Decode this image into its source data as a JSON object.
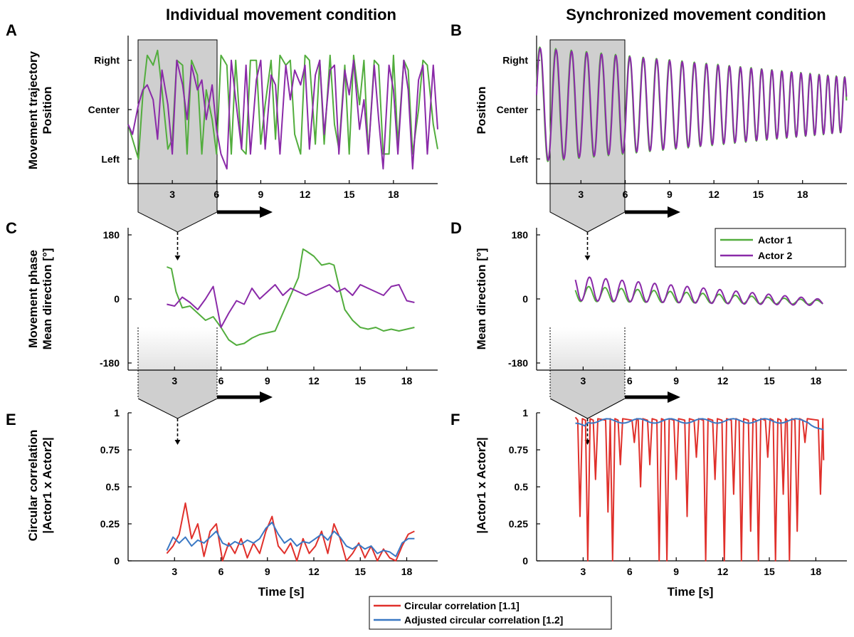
{
  "titles": {
    "left": "Individual movement condition",
    "right": "Synchronized movement condition"
  },
  "panel_letters": [
    "A",
    "B",
    "C",
    "D",
    "E",
    "F"
  ],
  "colors": {
    "actor1": "#52ad3d",
    "actor2": "#8a2aa8",
    "circular": "#e0302b",
    "adjusted": "#3a78c4",
    "window_fill": "#cfcfcf"
  },
  "legend_top": [
    "Actor 1",
    "Actor 2"
  ],
  "legend_bottom": [
    "Circular correlation [1.1]",
    "Adjusted circular correlation [1.2]"
  ],
  "chart_data": [
    {
      "panel": "A",
      "type": "line",
      "ylabel": [
        "Movement trajectory",
        "Position"
      ],
      "yticks": [
        "Left",
        "Center",
        "Right"
      ],
      "ytick_values": [
        -1,
        0,
        1
      ],
      "xticks": [
        3,
        6,
        9,
        12,
        15,
        18
      ],
      "xlim": [
        0,
        21
      ],
      "ylim": [
        -1.5,
        1.5
      ],
      "series": [
        {
          "name": "Actor 1",
          "x": [
            0,
            0.3,
            0.7,
            1.0,
            1.3,
            1.7,
            2.0,
            2.3,
            2.7,
            3.0,
            3.3,
            3.7,
            4.0,
            4.3,
            4.7,
            5.0,
            5.3,
            5.7,
            6.0,
            6.3,
            6.7,
            7.0,
            7.3,
            7.7,
            8.0,
            8.3,
            8.7,
            9.0,
            9.3,
            9.7,
            10.0,
            10.3,
            10.7,
            11.0,
            11.3,
            11.7,
            12.0,
            12.3,
            12.7,
            13.0,
            13.3,
            13.7,
            14.0,
            14.3,
            14.7,
            15.0,
            15.3,
            15.7,
            16.0,
            16.3,
            16.7,
            17.0,
            17.3,
            17.7,
            18.0,
            18.3,
            18.7,
            19.0,
            19.3,
            19.7,
            20.0,
            20.3,
            20.7,
            21.0
          ],
          "y": [
            -0.3,
            -0.6,
            -1.0,
            0.3,
            1.1,
            0.9,
            1.2,
            0.4,
            -0.8,
            -0.6,
            1.0,
            0.9,
            -0.9,
            1.0,
            0.7,
            -0.9,
            0.4,
            -0.2,
            -0.9,
            1.1,
            0.9,
            -0.9,
            1.0,
            -0.8,
            -0.9,
            1.0,
            1.0,
            -0.7,
            0.1,
            1.0,
            -0.6,
            1.1,
            0.9,
            1.0,
            -0.5,
            -0.9,
            1.1,
            1.0,
            -0.7,
            1.0,
            -0.7,
            1.1,
            -0.3,
            -0.8,
            0.9,
            -0.9,
            1.1,
            0.1,
            1.0,
            -0.9,
            1.0,
            0.9,
            -0.9,
            -0.9,
            1.1,
            -0.7,
            1.0,
            0.8,
            -0.9,
            0.0,
            1.0,
            0.9,
            -0.3,
            -0.8
          ]
        },
        {
          "name": "Actor 2",
          "x": [
            0,
            0.3,
            0.7,
            1.0,
            1.3,
            1.7,
            2.0,
            2.3,
            2.7,
            3.0,
            3.3,
            3.7,
            4.0,
            4.3,
            4.7,
            5.0,
            5.3,
            5.7,
            6.0,
            6.3,
            6.7,
            7.0,
            7.3,
            7.7,
            8.0,
            8.3,
            8.7,
            9.0,
            9.3,
            9.7,
            10.0,
            10.3,
            10.7,
            11.0,
            11.3,
            11.7,
            12.0,
            12.3,
            12.7,
            13.0,
            13.3,
            13.7,
            14.0,
            14.3,
            14.7,
            15.0,
            15.3,
            15.7,
            16.0,
            16.3,
            16.7,
            17.0,
            17.3,
            17.7,
            18.0,
            18.3,
            18.7,
            19.0,
            19.3,
            19.7,
            20.0,
            20.3,
            20.7,
            21.0
          ],
          "y": [
            -0.3,
            -0.5,
            0.1,
            0.4,
            0.5,
            0.2,
            -0.6,
            0.8,
            0.1,
            -0.9,
            1.0,
            0.5,
            -0.2,
            0.9,
            0.4,
            0.6,
            -0.2,
            0.5,
            -0.4,
            -0.9,
            -1.2,
            1.0,
            0.2,
            -0.8,
            0.9,
            -0.9,
            0.6,
            1.0,
            -0.8,
            0.7,
            0.5,
            -0.9,
            0.9,
            0.2,
            0.8,
            0.5,
            0.9,
            -0.8,
            0.7,
            1.0,
            -0.5,
            0.8,
            0.9,
            -0.9,
            0.8,
            0.3,
            1.0,
            -0.4,
            0.2,
            -0.9,
            0.9,
            -0.2,
            -1.2,
            0.9,
            0.4,
            -0.9,
            1.0,
            0.4,
            -1.2,
            0.6,
            0.9,
            -0.9,
            0.9,
            -0.4
          ]
        }
      ]
    },
    {
      "panel": "B",
      "type": "line",
      "ylabel": [
        "Position"
      ],
      "yticks": [
        "Left",
        "Center",
        "Right"
      ],
      "ytick_values": [
        -1,
        0,
        1
      ],
      "xticks": [
        3,
        6,
        9,
        12,
        15,
        18
      ],
      "xlim": [
        0,
        21
      ],
      "ylim": [
        -1.5,
        1.5
      ],
      "note": "Both actors oscillate in near-perfect synchrony; the period shortens from about 1.1 s to 0.55 s and the amplitude decreases from 1.15 to about 0.55 over 21 s."
    },
    {
      "panel": "C",
      "type": "line",
      "ylabel": [
        "Movement phase",
        "Mean direction [°]"
      ],
      "yticks": [
        -180,
        0,
        180
      ],
      "xticks": [
        3,
        6,
        9,
        12,
        15,
        18
      ],
      "xlim": [
        0,
        20
      ],
      "ylim": [
        -200,
        200
      ],
      "series": [
        {
          "name": "Actor 1",
          "x": [
            2.5,
            2.8,
            3.1,
            3.5,
            4.0,
            4.5,
            5.0,
            5.5,
            6.0,
            6.5,
            7.0,
            7.5,
            8.0,
            8.5,
            9.0,
            9.5,
            10.0,
            10.5,
            11.0,
            11.3,
            11.5,
            12.0,
            12.5,
            13.0,
            13.3,
            13.6,
            14.0,
            14.5,
            15.0,
            15.5,
            16.0,
            16.5,
            17.0,
            17.5,
            18.0,
            18.5
          ],
          "y": [
            90,
            85,
            20,
            -25,
            -20,
            -40,
            -60,
            -50,
            -80,
            -115,
            -130,
            -125,
            -110,
            -100,
            -95,
            -90,
            -40,
            10,
            60,
            140,
            135,
            120,
            95,
            100,
            95,
            40,
            -30,
            -60,
            -80,
            -85,
            -80,
            -90,
            -85,
            -90,
            -85,
            -80
          ]
        },
        {
          "name": "Actor 2",
          "x": [
            2.5,
            3.0,
            3.5,
            4.0,
            4.5,
            5.0,
            5.5,
            6.0,
            6.5,
            7.0,
            7.5,
            8.0,
            8.5,
            9.0,
            9.5,
            10.0,
            10.5,
            11.0,
            11.5,
            12.0,
            12.5,
            13.0,
            13.5,
            14.0,
            14.5,
            15.0,
            15.5,
            16.0,
            16.5,
            17.0,
            17.5,
            18.0,
            18.5
          ],
          "y": [
            -15,
            -20,
            5,
            -10,
            -30,
            0,
            35,
            -80,
            -40,
            -5,
            -15,
            30,
            0,
            20,
            40,
            10,
            30,
            20,
            10,
            20,
            30,
            40,
            20,
            30,
            10,
            40,
            30,
            20,
            10,
            35,
            40,
            -5,
            -10
          ]
        }
      ]
    },
    {
      "panel": "D",
      "type": "line",
      "ylabel": [
        "Mean direction [°]"
      ],
      "yticks": [
        -180,
        0,
        180
      ],
      "xticks": [
        3,
        6,
        9,
        12,
        15,
        18
      ],
      "xlim": [
        0,
        20
      ],
      "ylim": [
        -200,
        200
      ],
      "note": "Actor 1 and Actor 2 phases oscillate around 0° (x from 2.5 to 18.5 s), amplitude decaying from about 50° to 10°; Actor 2 starts near 70°, Actor 1 near 20°."
    },
    {
      "panel": "E",
      "type": "line",
      "ylabel": [
        "Circular correlation",
        "|Actor1 x Actor2|"
      ],
      "yticks": [
        0,
        0.25,
        0.5,
        0.75,
        1
      ],
      "xticks": [
        3,
        6,
        9,
        12,
        15,
        18
      ],
      "xlabel": "Time [s]",
      "xlim": [
        0,
        20
      ],
      "ylim": [
        0,
        1
      ],
      "series": [
        {
          "name": "Circular correlation [1.1]",
          "x": [
            2.5,
            2.9,
            3.3,
            3.7,
            4.1,
            4.5,
            4.9,
            5.3,
            5.7,
            6.1,
            6.5,
            6.9,
            7.3,
            7.7,
            8.1,
            8.5,
            8.9,
            9.3,
            9.7,
            10.1,
            10.5,
            10.9,
            11.3,
            11.7,
            12.1,
            12.5,
            12.9,
            13.3,
            13.7,
            14.1,
            14.5,
            14.9,
            15.3,
            15.7,
            16.1,
            16.5,
            16.9,
            17.3,
            17.7,
            18.1,
            18.5
          ],
          "y": [
            0.05,
            0.1,
            0.18,
            0.39,
            0.15,
            0.25,
            0.03,
            0.2,
            0.25,
            0.0,
            0.12,
            0.05,
            0.15,
            0.02,
            0.12,
            0.05,
            0.2,
            0.3,
            0.1,
            0.05,
            0.12,
            0.0,
            0.15,
            0.05,
            0.1,
            0.2,
            0.05,
            0.25,
            0.15,
            0.0,
            0.05,
            0.12,
            0.02,
            0.1,
            0.0,
            0.08,
            0.02,
            0.0,
            0.1,
            0.18,
            0.2
          ]
        },
        {
          "name": "Adjusted circular correlation [1.2]",
          "x": [
            2.5,
            2.9,
            3.3,
            3.7,
            4.1,
            4.5,
            4.9,
            5.3,
            5.7,
            6.1,
            6.5,
            6.9,
            7.3,
            7.7,
            8.1,
            8.5,
            8.9,
            9.3,
            9.7,
            10.1,
            10.5,
            10.9,
            11.3,
            11.7,
            12.1,
            12.5,
            12.9,
            13.3,
            13.7,
            14.1,
            14.5,
            14.9,
            15.3,
            15.7,
            16.1,
            16.5,
            16.9,
            17.3,
            17.7,
            18.1,
            18.5
          ],
          "y": [
            0.07,
            0.16,
            0.12,
            0.16,
            0.1,
            0.14,
            0.12,
            0.16,
            0.2,
            0.12,
            0.1,
            0.13,
            0.11,
            0.14,
            0.12,
            0.15,
            0.22,
            0.26,
            0.18,
            0.12,
            0.15,
            0.1,
            0.13,
            0.12,
            0.15,
            0.18,
            0.14,
            0.2,
            0.16,
            0.1,
            0.08,
            0.11,
            0.08,
            0.1,
            0.05,
            0.07,
            0.06,
            0.03,
            0.12,
            0.15,
            0.15
          ]
        }
      ]
    },
    {
      "panel": "F",
      "type": "line",
      "ylabel": [
        "|Actor1 x Actor2|"
      ],
      "yticks": [
        0,
        0.25,
        0.5,
        0.75,
        1
      ],
      "xticks": [
        3,
        6,
        9,
        12,
        15,
        18
      ],
      "xlabel": "Time [s]",
      "xlim": [
        0,
        20
      ],
      "ylim": [
        0,
        1
      ],
      "note": "Circular correlation mostly near 0.95 with frequent sharp drops to about 0 (x from 2.5 to 18.5 s); adjusted circular correlation stays near 0.93–0.96 throughout."
    }
  ]
}
